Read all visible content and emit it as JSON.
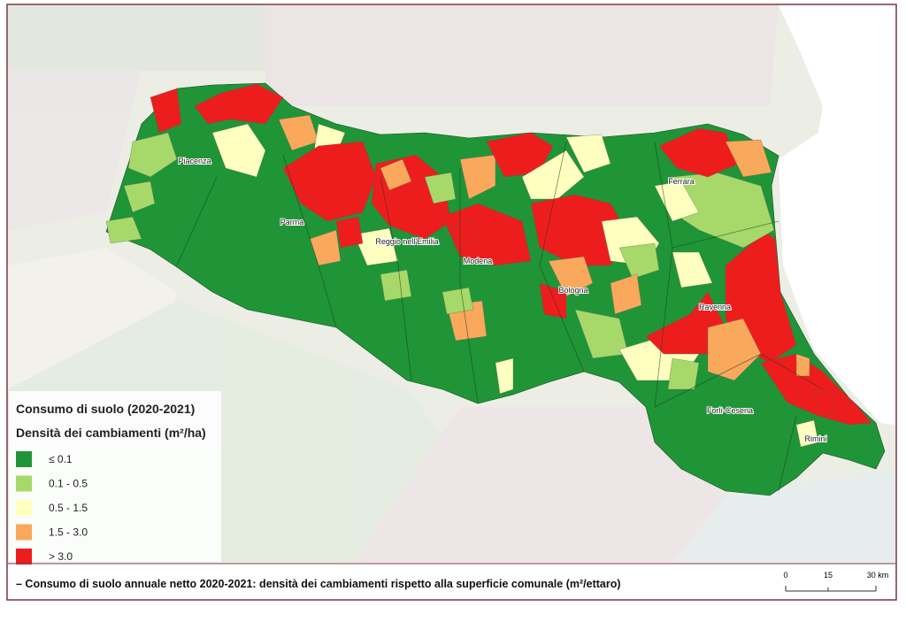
{
  "legend": {
    "title": "Consumo di suolo (2020-2021)",
    "subtitle": "Densità dei cambiamenti (m²/ha)",
    "classes": [
      {
        "label": "≤ 0.1",
        "color": "#1f9537"
      },
      {
        "label": "0.1 - 0.5",
        "color": "#a6d96a"
      },
      {
        "label": "0.5 - 1.5",
        "color": "#ffffbf"
      },
      {
        "label": "1.5 - 3.0",
        "color": "#f9a85c"
      },
      {
        "label": "> 3.0",
        "color": "#ee1d1d"
      }
    ]
  },
  "cities": [
    "Piacenza",
    "Parma",
    "Reggio nell'Emilia",
    "Modena",
    "Bologna",
    "Ferrara",
    "Ravenna",
    "Forlì-Cesena",
    "Rimini"
  ],
  "caption": "– Consumo di suolo annuale netto 2020-2021: densità dei cambiamenti rispetto alla superficie comunale (m²/ettaro)",
  "scale_bar": {
    "labels": [
      "0",
      "15",
      "30 km"
    ]
  }
}
